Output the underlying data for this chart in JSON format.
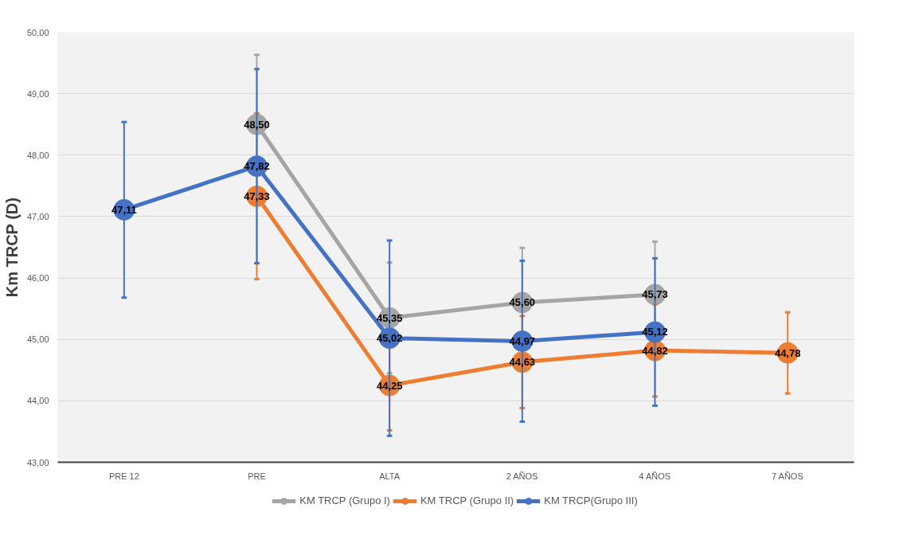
{
  "chart_data": {
    "type": "line",
    "ylabel": "Km TRCP (D)",
    "categories": [
      "PRE 12",
      "PRE",
      "ALTA",
      "2 AÑOS",
      "4 AÑOS",
      "7 AÑOS"
    ],
    "series": [
      {
        "name": "KM TRCP (Grupo I)",
        "color": "#a5a5a5",
        "values": [
          null,
          48.5,
          45.35,
          45.6,
          45.73,
          null
        ],
        "errors": [
          null,
          1.13,
          0.9,
          0.89,
          0.86,
          null
        ],
        "value_labels": [
          null,
          "48,50",
          "45,35",
          "45,60",
          "45,73",
          null
        ]
      },
      {
        "name": "KM TRCP (Grupo II)",
        "color": "#ed7d31",
        "values": [
          null,
          47.33,
          44.25,
          44.63,
          44.82,
          44.78
        ],
        "errors": [
          null,
          1.35,
          0.73,
          0.75,
          0.75,
          0.66
        ],
        "value_labels": [
          null,
          "47,33",
          "44,25",
          "44,63",
          "44,82",
          "44,78"
        ]
      },
      {
        "name": "KM TRCP(Grupo III)",
        "color": "#4472c4",
        "values": [
          47.11,
          47.82,
          45.02,
          44.97,
          45.12,
          null
        ],
        "errors": [
          1.43,
          1.58,
          1.59,
          1.31,
          1.2,
          null
        ],
        "value_labels": [
          "47,11",
          "47,82",
          "45,02",
          "44,97",
          "45,12",
          null
        ]
      }
    ],
    "ylim": [
      43,
      50
    ],
    "yticks": [
      {
        "value": 43,
        "label": "43,00"
      },
      {
        "value": 44,
        "label": "44,00"
      },
      {
        "value": 45,
        "label": "45,00"
      },
      {
        "value": 46,
        "label": "46,00"
      },
      {
        "value": 47,
        "label": "47,00"
      },
      {
        "value": 48,
        "label": "48,00"
      },
      {
        "value": 49,
        "label": "49,00"
      },
      {
        "value": 50,
        "label": "50,00"
      }
    ],
    "grid": "y",
    "legend": "bottom",
    "marker": "circle",
    "line_style": "solid"
  }
}
